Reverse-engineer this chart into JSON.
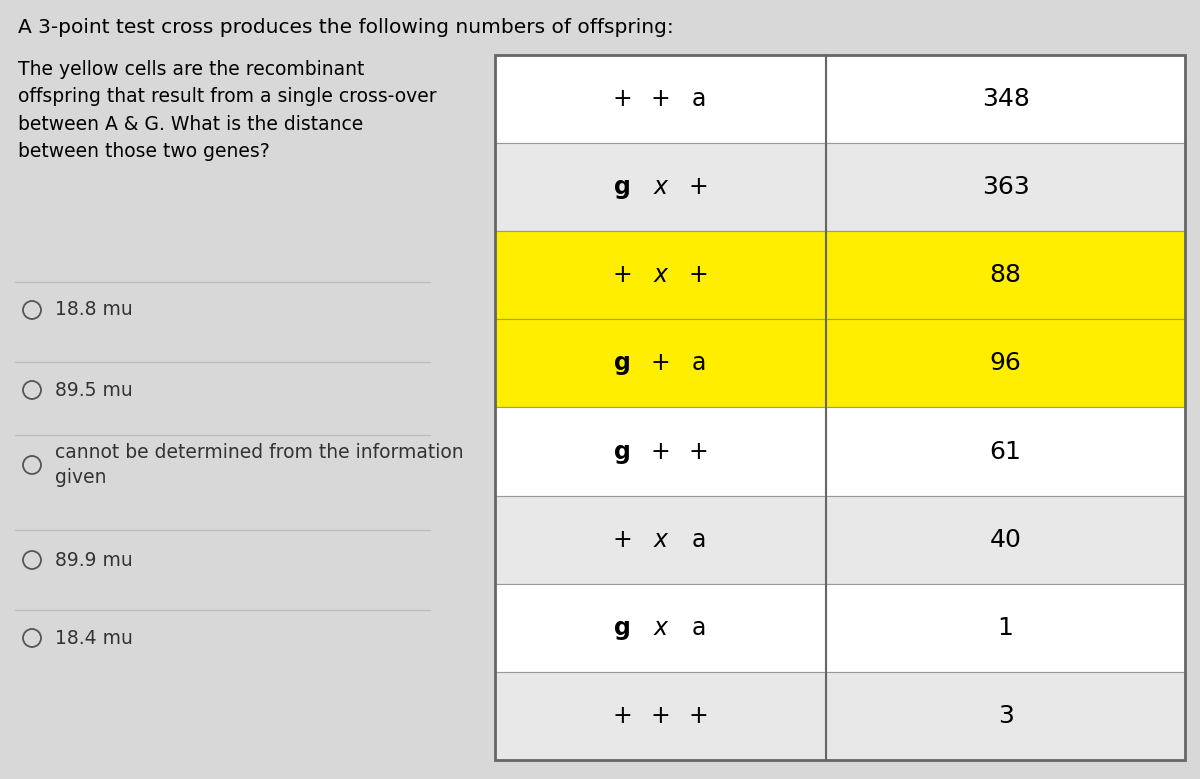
{
  "title": "A 3-point test cross produces the following numbers of offspring:",
  "desc_text": "The yellow cells are the recombinant\noffspring that result from a single cross-over\nbetween A & G. What is the distance\nbetween those two genes?",
  "radio_options": [
    {
      "text": "18.8 mu",
      "two_line": false
    },
    {
      "text": "89.5 mu",
      "two_line": false
    },
    {
      "text": "cannot be determined from the information\ngiven",
      "two_line": true
    },
    {
      "text": "89.9 mu",
      "two_line": false
    },
    {
      "text": "18.4 mu",
      "two_line": false
    }
  ],
  "table_rows": [
    {
      "parts": [
        "+",
        "+",
        "a"
      ],
      "count": "348",
      "yellow": false
    },
    {
      "parts": [
        "g",
        "x",
        "+"
      ],
      "count": "363",
      "yellow": false
    },
    {
      "parts": [
        "+",
        "x",
        "+"
      ],
      "count": "88",
      "yellow": true
    },
    {
      "parts": [
        "g",
        "+",
        "a"
      ],
      "count": "96",
      "yellow": true
    },
    {
      "parts": [
        "g",
        "+",
        "+"
      ],
      "count": "61",
      "yellow": false
    },
    {
      "parts": [
        "+",
        "x",
        "a"
      ],
      "count": "40",
      "yellow": false
    },
    {
      "parts": [
        "g",
        "x",
        "a"
      ],
      "count": "1",
      "yellow": false
    },
    {
      "parts": [
        "+",
        "+",
        "+"
      ],
      "count": "3",
      "yellow": false
    }
  ],
  "bg_color": "#d8d8d8",
  "table_bg_white": "#ffffff",
  "table_bg_light": "#e8e8e8",
  "yellow_color": "#ffee00",
  "border_color": "#999999",
  "title_fontsize": 14.5,
  "desc_fontsize": 13.5,
  "radio_fontsize": 13.5,
  "table_fontsize": 17
}
